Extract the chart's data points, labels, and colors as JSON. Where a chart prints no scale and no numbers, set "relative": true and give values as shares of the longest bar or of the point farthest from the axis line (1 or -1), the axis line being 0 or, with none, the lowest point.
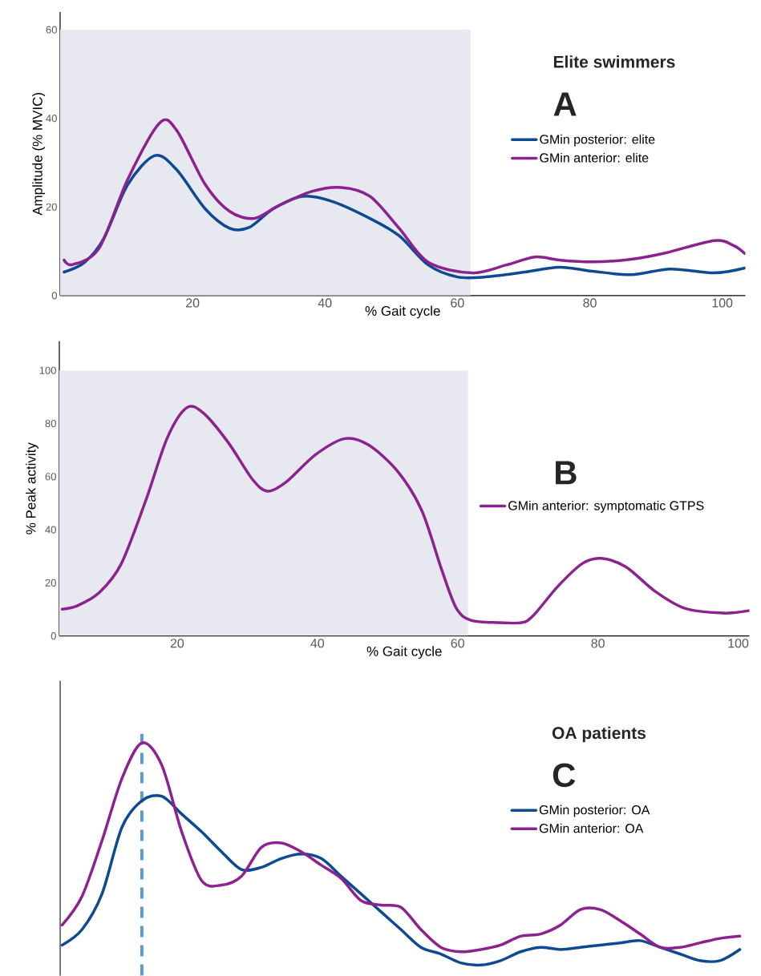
{
  "chart_data": [
    {
      "type": "line",
      "title": "Elite swimmers",
      "annotations": [
        "A"
      ],
      "xlabel": "% Gait cycle",
      "ylabel": "Amplitude (% MVIC)",
      "xlim": [
        0,
        103.5
      ],
      "ylim": [
        0,
        64
      ],
      "xticks": [
        20,
        40,
        60,
        80,
        100
      ],
      "yticks": [
        0,
        20,
        40,
        60
      ],
      "legend": "right",
      "bands": [
        {
          "axis": "x",
          "from": 0,
          "to": 62,
          "color": "#e8e8f0"
        }
      ],
      "series": [
        {
          "name": "GMin posterior: elite",
          "color": "#0d4a91",
          "x": [
            0.6,
            3.7,
            6.6,
            10.2,
            14.3,
            17.6,
            21.9,
            25.6,
            28.6,
            32.2,
            36.6,
            41,
            46.8,
            51.2,
            55.6,
            60,
            64.3,
            70.2,
            75.4,
            80.4,
            86.3,
            92.2,
            98.8,
            103.4
          ],
          "values": [
            5.3,
            7.5,
            12.9,
            25,
            31.6,
            28.4,
            19.6,
            15.2,
            15.4,
            19.6,
            22.4,
            21.3,
            17.4,
            13.5,
            6.9,
            4.2,
            4.2,
            5.3,
            6.4,
            5.5,
            4.7,
            6,
            5.1,
            6.2
          ]
        },
        {
          "name": "GMin anterior: elite",
          "color": "#8b2290",
          "x": [
            0.6,
            1.9,
            5.9,
            10.2,
            15,
            17.6,
            21.9,
            25.6,
            29.3,
            32.9,
            38,
            42.5,
            46.8,
            51.2,
            55.6,
            62.2,
            67.4,
            71.7,
            75.4,
            80.4,
            86.3,
            91.4,
            98.8,
            101.7,
            103.4
          ],
          "values": [
            8,
            7,
            10.7,
            26.2,
            38.9,
            37.3,
            25.1,
            19,
            17.4,
            20.2,
            23.5,
            24.4,
            22.4,
            15.2,
            7.5,
            5.1,
            6.9,
            8.7,
            8,
            7.6,
            8.2,
            9.6,
            12.4,
            11.3,
            9.5
          ]
        }
      ]
    },
    {
      "type": "line",
      "annotations": [
        "B"
      ],
      "xlabel": "% Gait cycle",
      "ylabel": "% Peak activity",
      "xlim": [
        3.2,
        101.6
      ],
      "ylim": [
        0,
        111
      ],
      "xticks": [
        20,
        40,
        60,
        80,
        100
      ],
      "yticks": [
        0,
        20,
        40,
        60,
        80,
        100
      ],
      "legend": "right",
      "bands": [
        {
          "axis": "x",
          "from": 3.2,
          "to": 61.5,
          "color": "#e8e8f0"
        }
      ],
      "series": [
        {
          "name": "GMin anterior: symptomatic GTPS",
          "color": "#8b2290",
          "x": [
            3.6,
            5.8,
            8.9,
            12,
            15.5,
            18.6,
            21.4,
            23.8,
            27.3,
            30.7,
            32.9,
            35.6,
            39.7,
            43.9,
            47.3,
            51.5,
            54.9,
            57.7,
            59.8,
            61.9,
            66,
            69.1,
            70.8,
            74.3,
            77.8,
            80.5,
            84,
            88.1,
            92.3,
            97.8,
            101.5
          ],
          "values": [
            10.1,
            11.4,
            16.3,
            27,
            50.8,
            74.6,
            86,
            83.8,
            72.8,
            59.1,
            54.5,
            58.1,
            68.2,
            74.3,
            71.9,
            61.8,
            47.1,
            25.1,
            10.5,
            5.9,
            5,
            5,
            7.7,
            18.7,
            27.3,
            29.2,
            26,
            16.9,
            10.5,
            8.6,
            9.5
          ]
        }
      ]
    },
    {
      "type": "line",
      "title": "OA patients",
      "annotations": [
        "C"
      ],
      "relative": true,
      "legend": "right",
      "categories": [
        null,
        null,
        null,
        null,
        null,
        null,
        null,
        null,
        null,
        null,
        null,
        null,
        null,
        null,
        null,
        null,
        null,
        null,
        null,
        null,
        null,
        null,
        null,
        null,
        null,
        null,
        null,
        null,
        null,
        null,
        null,
        null,
        null,
        null,
        null
      ],
      "series": [
        {
          "name": "GMin posterior: OA",
          "color": "#0d4a91",
          "values": [
            0.09,
            0.16,
            0.32,
            0.62,
            0.74,
            0.76,
            0.68,
            0.6,
            0.51,
            0.43,
            0.44,
            0.48,
            0.5,
            0.48,
            0.4,
            0.32,
            0.24,
            0.16,
            0.08,
            0.05,
            0.01,
            0,
            0.02,
            0.06,
            0.08,
            0.07,
            0.08,
            0.09,
            0.1,
            0.11,
            0.08,
            0.05,
            0.02,
            0.02,
            0.07
          ]
        },
        {
          "name": "GMin anterior: OA",
          "color": "#8b2290",
          "values": [
            0.18,
            0.31,
            0.56,
            0.84,
            1,
            0.9,
            0.6,
            0.38,
            0.36,
            0.4,
            0.53,
            0.55,
            0.51,
            0.45,
            0.39,
            0.29,
            0.27,
            0.26,
            0.16,
            0.08,
            0.06,
            0.07,
            0.09,
            0.13,
            0.14,
            0.18,
            0.25,
            0.25,
            0.2,
            0.14,
            0.08,
            0.08,
            0.1,
            0.12,
            0.13
          ]
        }
      ]
    }
  ]
}
